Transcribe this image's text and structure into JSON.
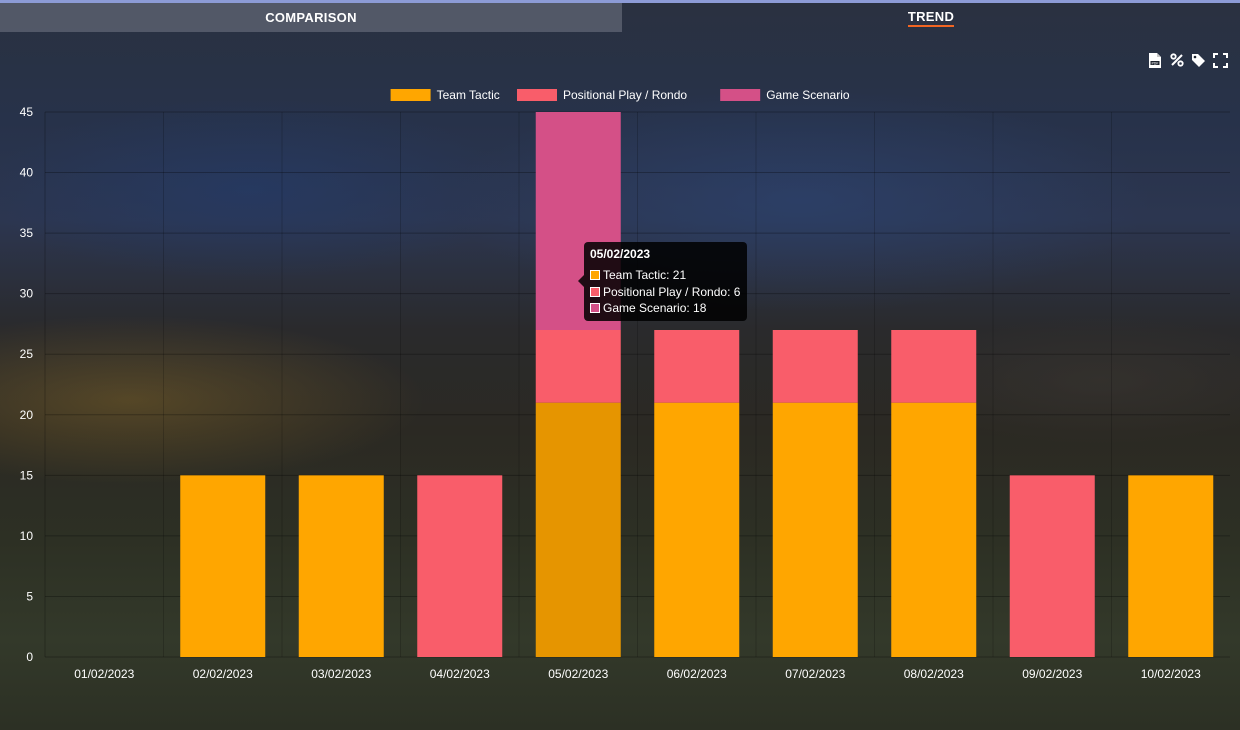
{
  "tabs": [
    {
      "label": "COMPARISON",
      "active": false
    },
    {
      "label": "TREND",
      "active": true
    }
  ],
  "toolbar": {
    "icons": [
      "pdf-icon",
      "percent-icon",
      "tag-icon",
      "fullscreen-icon"
    ]
  },
  "colors": {
    "team_tactic": "#ffa600",
    "positional_play": "#f95d6a",
    "game_scenario": "#d45087",
    "accent": "#f26522"
  },
  "chart_data": {
    "type": "bar",
    "stacked": true,
    "title": "",
    "xlabel": "",
    "ylabel": "",
    "ylim": [
      0,
      45
    ],
    "yticks": [
      0,
      5,
      10,
      15,
      20,
      25,
      30,
      35,
      40,
      45
    ],
    "legend_position": "top",
    "categories": [
      "01/02/2023",
      "02/02/2023",
      "03/02/2023",
      "04/02/2023",
      "05/02/2023",
      "06/02/2023",
      "07/02/2023",
      "08/02/2023",
      "09/02/2023",
      "10/02/2023"
    ],
    "series": [
      {
        "name": "Team Tactic",
        "color": "#ffa600",
        "values": [
          0,
          15,
          15,
          0,
          21,
          21,
          21,
          21,
          0,
          15
        ]
      },
      {
        "name": "Positional Play / Rondo",
        "color": "#f95d6a",
        "values": [
          0,
          0,
          0,
          15,
          6,
          6,
          6,
          6,
          15,
          0
        ]
      },
      {
        "name": "Game Scenario",
        "color": "#d45087",
        "values": [
          0,
          0,
          0,
          0,
          18,
          0,
          0,
          0,
          0,
          0
        ]
      }
    ],
    "highlight_index": 4
  },
  "tooltip": {
    "title": "05/02/2023",
    "rows": [
      {
        "label": "Team Tactic: 21",
        "color": "#ffa600"
      },
      {
        "label": "Positional Play / Rondo: 6",
        "color": "#f95d6a"
      },
      {
        "label": "Game Scenario: 18",
        "color": "#d45087"
      }
    ]
  }
}
